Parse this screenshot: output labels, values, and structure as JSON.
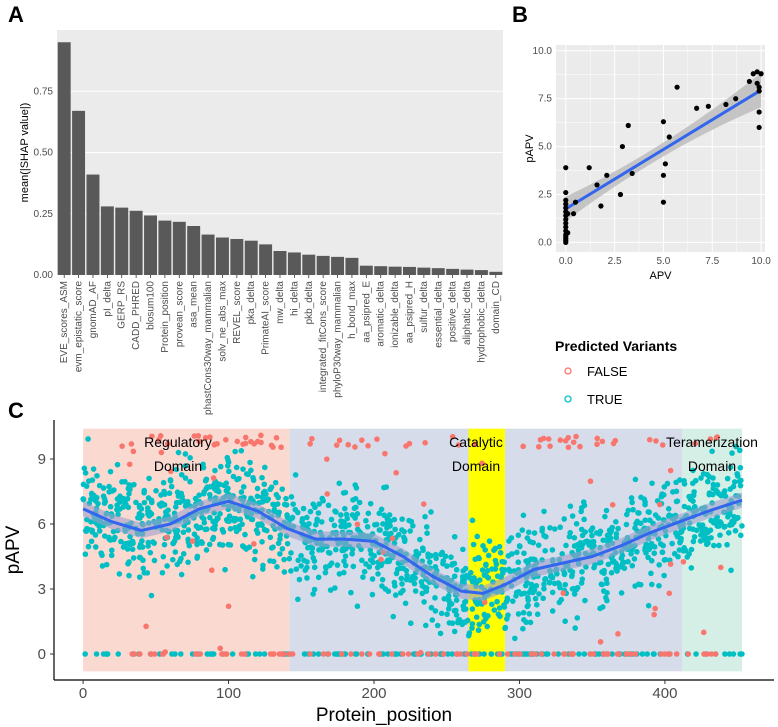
{
  "panel_labels": {
    "a": "A",
    "b": "B",
    "c": "C"
  },
  "colors": {
    "bar": "#595959",
    "panel_bg": "#ebebeb",
    "grid": "#ffffff",
    "fit_line": "#3366ee",
    "ci_band": "#bdbdbd",
    "false_color": "#f8766d",
    "true_color": "#00bfc4",
    "regulatory_bg": "#f9d5cc",
    "middle_bg": "#d3d8e8",
    "catalytic_bg": "#ffff00",
    "tetramer_bg": "#d2ede3"
  },
  "chart_data": [
    {
      "id": "A",
      "type": "bar",
      "title": "",
      "xlabel": "",
      "ylabel": "mean(|SHAP value|)",
      "ylim": [
        0,
        1.0
      ],
      "yticks": [
        "0.00",
        "0.25",
        "0.50",
        "0.75"
      ],
      "categories": [
        "EVE_scores_ASM",
        "evm_epistatic_score",
        "gnomAD_AF",
        "pI_delta",
        "GERP_RS",
        "CADD_PHRED",
        "blosum100",
        "Protein_position",
        "provean_score",
        "asa_mean",
        "phastCons30way_mammalian",
        "solv_ne_abs_max",
        "REVEL_score",
        "pka_delta",
        "PrimateAI_score",
        "mw_delta",
        "hi_delta",
        "pkb_delta",
        "integrated_fitCons_score",
        "phyloP30way_mammalian",
        "h_bond_max",
        "aa_psipred_E",
        "aromatic_delta",
        "ionizable_delta",
        "aa_psipred_H",
        "sulfur_delta",
        "essential_delta",
        "positive_delta",
        "aliphatic_delta",
        "hydrophobic_delta",
        "domain_CD"
      ],
      "values": [
        0.95,
        0.67,
        0.41,
        0.28,
        0.275,
        0.262,
        0.243,
        0.222,
        0.217,
        0.2,
        0.165,
        0.153,
        0.147,
        0.14,
        0.125,
        0.098,
        0.092,
        0.083,
        0.078,
        0.074,
        0.07,
        0.038,
        0.036,
        0.034,
        0.033,
        0.03,
        0.028,
        0.025,
        0.022,
        0.02,
        0.013
      ]
    },
    {
      "id": "B",
      "type": "scatter",
      "xlabel": "APV",
      "ylabel": "pAPV",
      "xlim": [
        -0.5,
        10.2
      ],
      "ylim": [
        -0.5,
        10.3
      ],
      "xticks": [
        "0.0",
        "2.5",
        "5.0",
        "7.5",
        "10.0"
      ],
      "yticks": [
        "0.0",
        "2.5",
        "5.0",
        "7.5",
        "10.0"
      ],
      "points": [
        [
          0,
          0
        ],
        [
          0,
          0.1
        ],
        [
          0,
          0.2
        ],
        [
          0,
          0.3
        ],
        [
          0,
          0.4
        ],
        [
          0,
          0.6
        ],
        [
          0,
          0.8
        ],
        [
          0,
          1.0
        ],
        [
          0,
          1.2
        ],
        [
          0,
          1.4
        ],
        [
          0,
          1.6
        ],
        [
          0,
          1.8
        ],
        [
          0,
          2.0
        ],
        [
          0,
          2.2
        ],
        [
          0,
          2.6
        ],
        [
          0,
          3.9
        ],
        [
          0.1,
          0.5
        ],
        [
          0.1,
          1.5
        ],
        [
          0.4,
          1.5
        ],
        [
          0.5,
          2.1
        ],
        [
          1.2,
          3.9
        ],
        [
          1.6,
          3.0
        ],
        [
          1.8,
          1.9
        ],
        [
          2.1,
          3.5
        ],
        [
          2.8,
          2.5
        ],
        [
          2.9,
          5.0
        ],
        [
          3.2,
          6.1
        ],
        [
          3.4,
          3.6
        ],
        [
          5.0,
          6.3
        ],
        [
          5.0,
          2.1
        ],
        [
          5.0,
          3.5
        ],
        [
          5.1,
          4.1
        ],
        [
          5.3,
          5.5
        ],
        [
          5.7,
          8.1
        ],
        [
          6.7,
          7.0
        ],
        [
          7.3,
          7.1
        ],
        [
          8.2,
          7.2
        ],
        [
          8.7,
          7.5
        ],
        [
          9.4,
          8.4
        ],
        [
          9.6,
          8.8
        ],
        [
          9.8,
          8.9
        ],
        [
          9.8,
          8.3
        ],
        [
          9.9,
          8.1
        ],
        [
          9.9,
          7.9
        ],
        [
          9.9,
          6.8
        ],
        [
          9.9,
          6.0
        ],
        [
          10.0,
          8.8
        ]
      ],
      "fit": {
        "intercept": 1.75,
        "slope": 0.62
      }
    },
    {
      "id": "C",
      "type": "scatter",
      "xlabel": "Protein_position",
      "ylabel": "pAPV",
      "xlim": [
        -20,
        475
      ],
      "ylim": [
        -1.2,
        10.8
      ],
      "xticks": [
        "0",
        "100",
        "200",
        "300",
        "400"
      ],
      "yticks": [
        "0",
        "3",
        "6",
        "9"
      ],
      "legend": {
        "title": "Predicted Variants",
        "false_label": "FALSE",
        "true_label": "TRUE",
        "position": "right"
      },
      "regions": [
        {
          "name": "Regulatory Domain",
          "line1": "Regulatory",
          "line2": "Domain",
          "start": 0,
          "end": 142,
          "color_key": "regulatory_bg"
        },
        {
          "name": "",
          "line1": "",
          "line2": "",
          "start": 142,
          "end": 412,
          "color_key": "middle_bg"
        },
        {
          "name": "Catalytic Domain",
          "line1": "Catalytic",
          "line2": "Domain",
          "start": 265,
          "end": 290,
          "color_key": "catalytic_bg"
        },
        {
          "name": "Teramerization Domain",
          "line1": "Teramerization",
          "line2": "Domain",
          "start": 412,
          "end": 453,
          "color_key": "tetramer_bg"
        }
      ],
      "smooth_curve": [
        [
          0,
          6.7
        ],
        [
          20,
          6.1
        ],
        [
          40,
          5.7
        ],
        [
          60,
          6.0
        ],
        [
          80,
          6.7
        ],
        [
          100,
          7.05
        ],
        [
          120,
          6.6
        ],
        [
          140,
          5.8
        ],
        [
          160,
          5.3
        ],
        [
          180,
          5.3
        ],
        [
          200,
          5.2
        ],
        [
          220,
          4.5
        ],
        [
          240,
          3.6
        ],
        [
          260,
          2.9
        ],
        [
          275,
          2.8
        ],
        [
          290,
          3.2
        ],
        [
          310,
          3.9
        ],
        [
          330,
          4.2
        ],
        [
          350,
          4.5
        ],
        [
          370,
          5.0
        ],
        [
          390,
          5.6
        ],
        [
          410,
          6.1
        ],
        [
          430,
          6.6
        ],
        [
          453,
          7.1
        ]
      ],
      "n_points_true": 1650,
      "n_points_false": 190
    }
  ]
}
